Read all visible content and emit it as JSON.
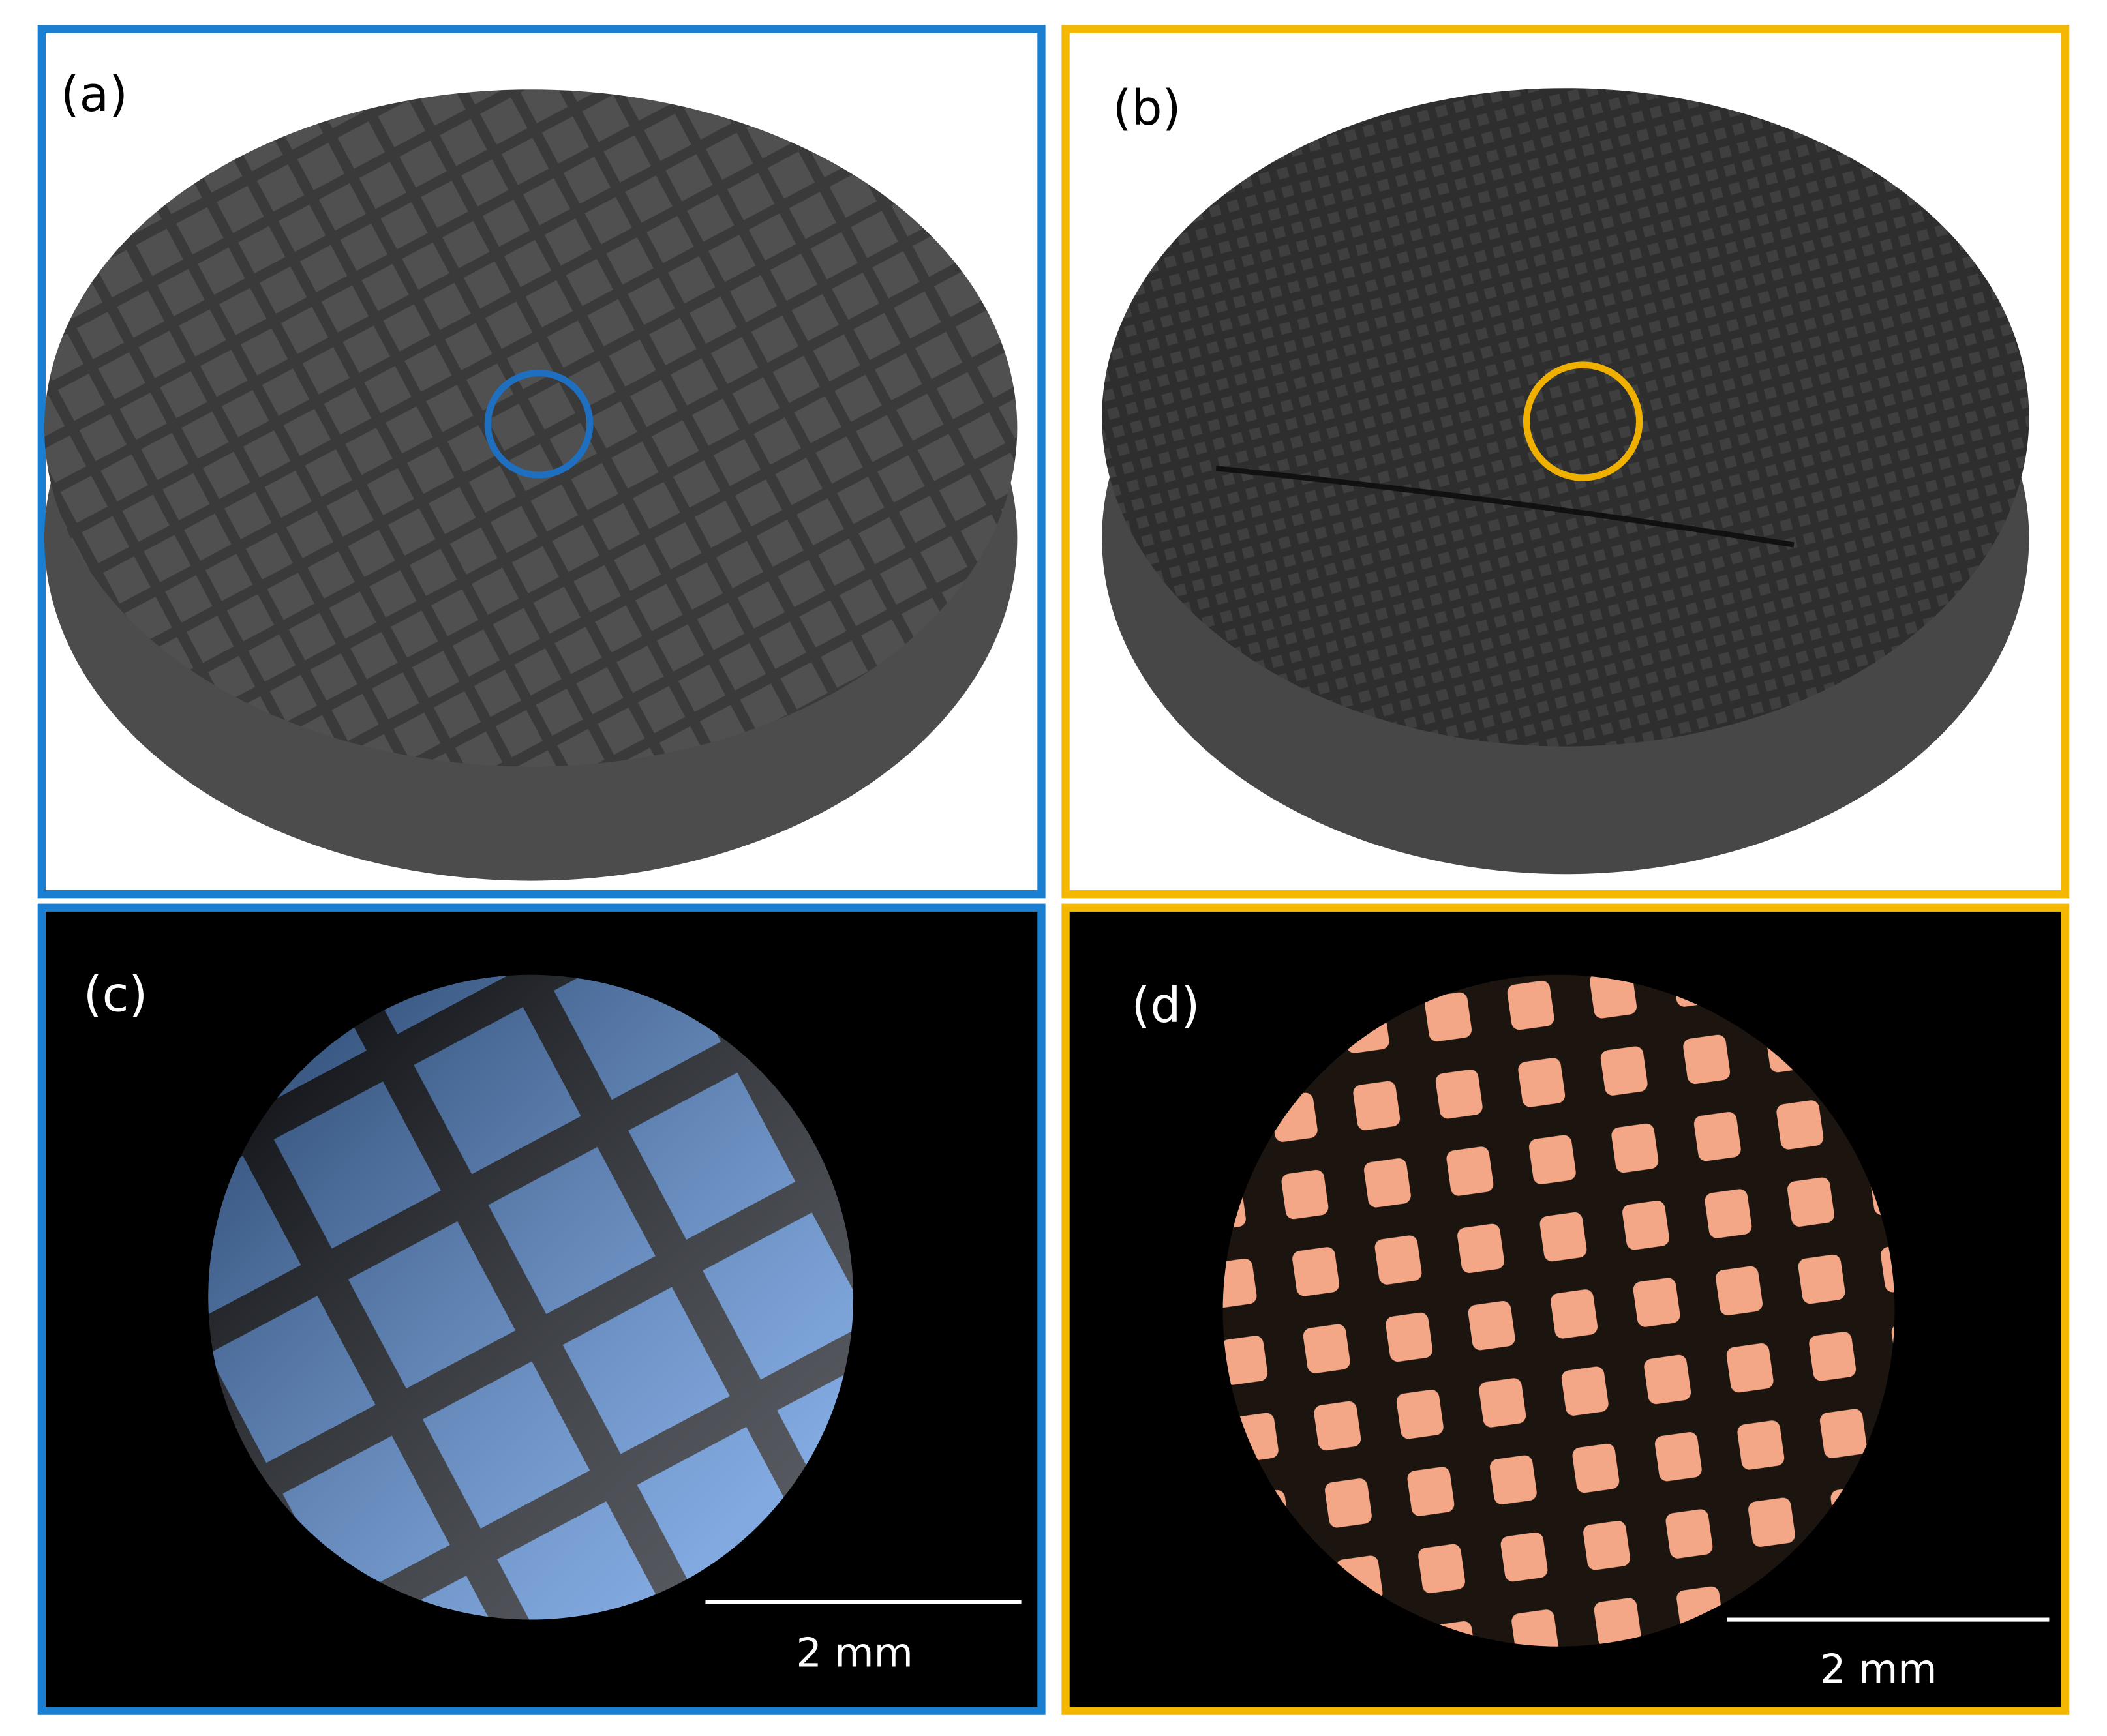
{
  "panels": [
    {
      "label": "(a)"
    },
    {
      "label": "(b)"
    },
    {
      "label": "(c)",
      "scale_bar": "2 mm"
    },
    {
      "label": "(d)",
      "scale_bar": "2 mm"
    }
  ]
}
